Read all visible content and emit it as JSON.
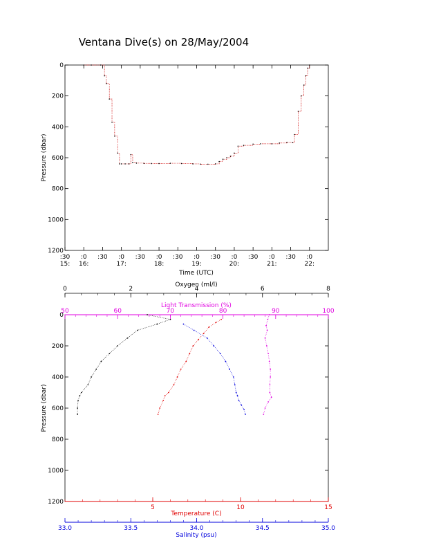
{
  "title": "Ventana Dive(s) on 28/May/2004",
  "colors": {
    "axis": "#000000",
    "time_trace_points": "#000000",
    "time_trace_line": "#d00000",
    "oxygen": "#000000",
    "temperature": "#e00000",
    "salinity": "#0000dd",
    "light_transmission": "#e000e0"
  },
  "chart_data": [
    {
      "type": "line",
      "title": "Ventana Dive(s) on 28/May/2004",
      "xlabel": "Time (UTC)",
      "ylabel": "Pressure (dbar)",
      "x_unit": "hours UTC",
      "xlim": [
        15.5,
        22.5
      ],
      "ylim": [
        1200,
        0
      ],
      "y_reversed": true,
      "ytick_labels": [
        "0",
        "200",
        "400",
        "600",
        "800",
        "1000",
        "1200"
      ],
      "xtick_labels": [
        {
          "minute": ":30",
          "hour": "15:"
        },
        {
          "minute": ":0",
          "hour": "16:"
        },
        {
          "minute": ":30",
          "hour": ""
        },
        {
          "minute": ":0",
          "hour": "17:"
        },
        {
          "minute": ":30",
          "hour": ""
        },
        {
          "minute": ":0",
          "hour": "18:"
        },
        {
          "minute": ":30",
          "hour": ""
        },
        {
          "minute": ":0",
          "hour": "19:"
        },
        {
          "minute": ":30",
          "hour": ""
        },
        {
          "minute": ":0",
          "hour": "20:"
        },
        {
          "minute": ":30",
          "hour": ""
        },
        {
          "minute": ":0",
          "hour": "21:"
        },
        {
          "minute": ":30",
          "hour": ""
        },
        {
          "minute": ":0",
          "hour": "22:"
        }
      ],
      "series": [
        {
          "x": [
            16.0,
            16.2,
            16.45,
            16.55,
            16.6,
            16.68,
            16.75,
            16.82,
            16.9,
            16.95,
            17.0,
            17.1,
            17.2,
            17.25,
            17.3,
            17.4,
            17.6,
            17.8,
            18.0,
            18.3,
            18.6,
            18.9,
            19.1,
            19.3,
            19.5,
            19.6,
            19.7,
            19.8,
            19.9,
            20.0,
            20.1,
            20.25,
            20.5,
            20.7,
            21.0,
            21.2,
            21.4,
            21.55,
            21.6,
            21.7,
            21.78,
            21.85,
            21.9,
            21.95,
            22.0
          ],
          "y": [
            0,
            0,
            0,
            70,
            120,
            220,
            370,
            460,
            570,
            640,
            640,
            640,
            640,
            580,
            630,
            635,
            637,
            638,
            638,
            636,
            638,
            640,
            642,
            642,
            640,
            625,
            610,
            600,
            590,
            570,
            525,
            520,
            512,
            510,
            510,
            505,
            500,
            502,
            450,
            300,
            200,
            130,
            70,
            20,
            0
          ]
        }
      ]
    },
    {
      "type": "line",
      "ylabel": "Pressure (dbar)",
      "ylim": [
        1200,
        0
      ],
      "y_reversed": true,
      "ytick_labels": [
        "0",
        "200",
        "400",
        "600",
        "800",
        "1000",
        "1200"
      ],
      "axes": {
        "oxygen": {
          "label": "Oxygen (ml/l)",
          "position": "top",
          "range": [
            0,
            8
          ],
          "tick_labels": [
            "0",
            "2",
            "4",
            "6",
            "8"
          ]
        },
        "light_transmission": {
          "label": "Light Transmission (%)",
          "position": "top",
          "range": [
            50,
            100
          ],
          "tick_labels": [
            "50",
            "60",
            "70",
            "80",
            "90",
            "100"
          ]
        },
        "temperature": {
          "label": "Temperature (C)",
          "position": "bottom",
          "range": [
            0,
            15
          ],
          "tick_labels": [
            "5",
            "10",
            "15"
          ]
        },
        "salinity": {
          "label": "Salinity (psu)",
          "position": "bottom",
          "range": [
            33.0,
            35.0
          ],
          "tick_labels": [
            "33.0",
            "33.5",
            "34.0",
            "34.5",
            "35.0"
          ]
        }
      },
      "series": [
        {
          "axis": "oxygen",
          "y": [
            0,
            30,
            60,
            100,
            150,
            200,
            250,
            300,
            350,
            400,
            450,
            500,
            520,
            550,
            600,
            640
          ],
          "x": [
            2.5,
            3.2,
            2.8,
            2.2,
            1.9,
            1.6,
            1.35,
            1.1,
            0.95,
            0.8,
            0.7,
            0.5,
            0.45,
            0.4,
            0.38,
            0.38
          ]
        },
        {
          "axis": "temperature",
          "y": [
            30,
            50,
            80,
            120,
            160,
            200,
            250,
            300,
            350,
            400,
            450,
            500,
            520,
            550,
            600,
            640
          ],
          "x": [
            8.9,
            8.6,
            8.2,
            7.9,
            7.6,
            7.3,
            7.1,
            6.9,
            6.6,
            6.4,
            6.2,
            5.9,
            5.7,
            5.6,
            5.4,
            5.3
          ]
        },
        {
          "axis": "salinity",
          "y": [
            60,
            100,
            150,
            200,
            250,
            300,
            350,
            400,
            450,
            500,
            520,
            550,
            580,
            610,
            640
          ],
          "x": [
            33.9,
            33.98,
            34.08,
            34.13,
            34.18,
            34.22,
            34.25,
            34.28,
            34.29,
            34.3,
            34.31,
            34.32,
            34.34,
            34.36,
            34.37
          ]
        },
        {
          "axis": "light_transmission",
          "y": [
            0,
            30,
            70,
            100,
            150,
            200,
            250,
            300,
            350,
            400,
            450,
            500,
            530,
            560,
            600,
            640
          ],
          "x": [
            88.8,
            88.5,
            88.2,
            88.4,
            88.0,
            88.3,
            88.6,
            88.8,
            89.0,
            89.0,
            88.9,
            88.9,
            89.2,
            88.6,
            88.0,
            87.7
          ]
        }
      ]
    }
  ]
}
